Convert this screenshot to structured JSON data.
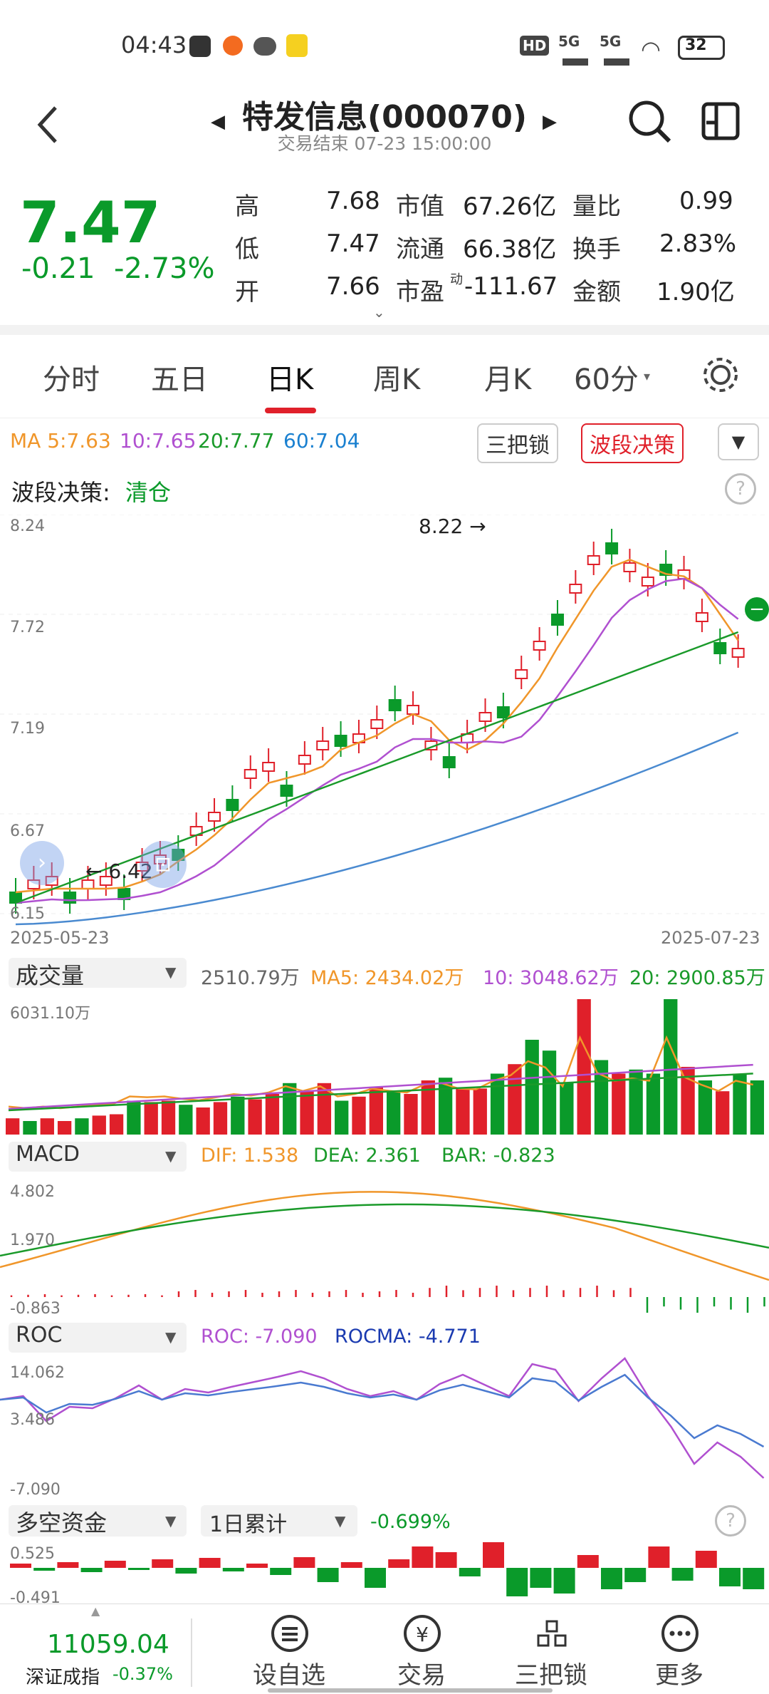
{
  "status_bar": {
    "time": "04:43",
    "battery": "32",
    "net1": "5G",
    "net2": "5G",
    "hd": "HD"
  },
  "header": {
    "title": "特发信息(000070)",
    "subtitle": "交易结束 07-23 15:00:00"
  },
  "quote": {
    "price": "7.47",
    "change": "-0.21",
    "change_pct": "-2.73%",
    "rows": [
      {
        "l1": "高",
        "v1": "7.68",
        "l2": "市值",
        "v2": "67.26亿",
        "l3": "量比",
        "v3": "0.99"
      },
      {
        "l1": "低",
        "v1": "7.47",
        "l2": "流通",
        "v2": "66.38亿",
        "l3": "换手",
        "v3": "2.83%"
      },
      {
        "l1": "开",
        "v1": "7.66",
        "l2": "市盈",
        "sup": "动",
        "v2": "-111.67",
        "l3": "金额",
        "v3": "1.90亿"
      }
    ]
  },
  "tabs": [
    "分时",
    "五日",
    "日K",
    "周K",
    "月K",
    "60分"
  ],
  "ma": {
    "ma5": "MA 5:7.63",
    "ma10": "10:7.65",
    "ma20": "20:7.77",
    "ma60": "60:7.04"
  },
  "buttons": {
    "lock": "三把锁",
    "band": "波段决策"
  },
  "decision": {
    "label": "波段决策:",
    "value": "清仓"
  },
  "kline": {
    "y_labels": [
      "8.24",
      "7.72",
      "7.19",
      "6.67",
      "6.15"
    ],
    "date_start": "2025-05-23",
    "date_end": "2025-07-23",
    "max_label": "8.22",
    "min_label": "6.42"
  },
  "volume": {
    "name": "成交量",
    "value": "2510.79万",
    "ma5": "MA5: 2434.02万",
    "ma10": "10: 3048.62万",
    "ma20": "20: 2900.85万",
    "top": "6031.10万"
  },
  "macd": {
    "name": "MACD",
    "dif": "DIF: 1.538",
    "dea": "DEA: 2.361",
    "bar": "BAR: -0.823",
    "labels": [
      "4.802",
      "1.970",
      "-0.863"
    ]
  },
  "roc": {
    "name": "ROC",
    "roc": "ROC: -7.090",
    "rocma": "ROCMA: -4.771",
    "labels": [
      "14.062",
      "3.486",
      "-7.090"
    ]
  },
  "fund": {
    "name": "多空资金",
    "period": "1日累计",
    "value": "-0.699%",
    "labels": [
      "0.525",
      "-0.491"
    ]
  },
  "bottom": {
    "index_value": "11059.04",
    "index_name": "深证成指",
    "index_pct": "-0.37%",
    "nav": [
      "设自选",
      "交易",
      "三把锁",
      "更多"
    ]
  },
  "colors": {
    "up": "#e0202a",
    "down": "#0a9a2a",
    "ma5": "#f0962a",
    "ma10": "#b050d0",
    "ma20": "#1a9a2a",
    "ma60": "#4a8ad0"
  }
}
